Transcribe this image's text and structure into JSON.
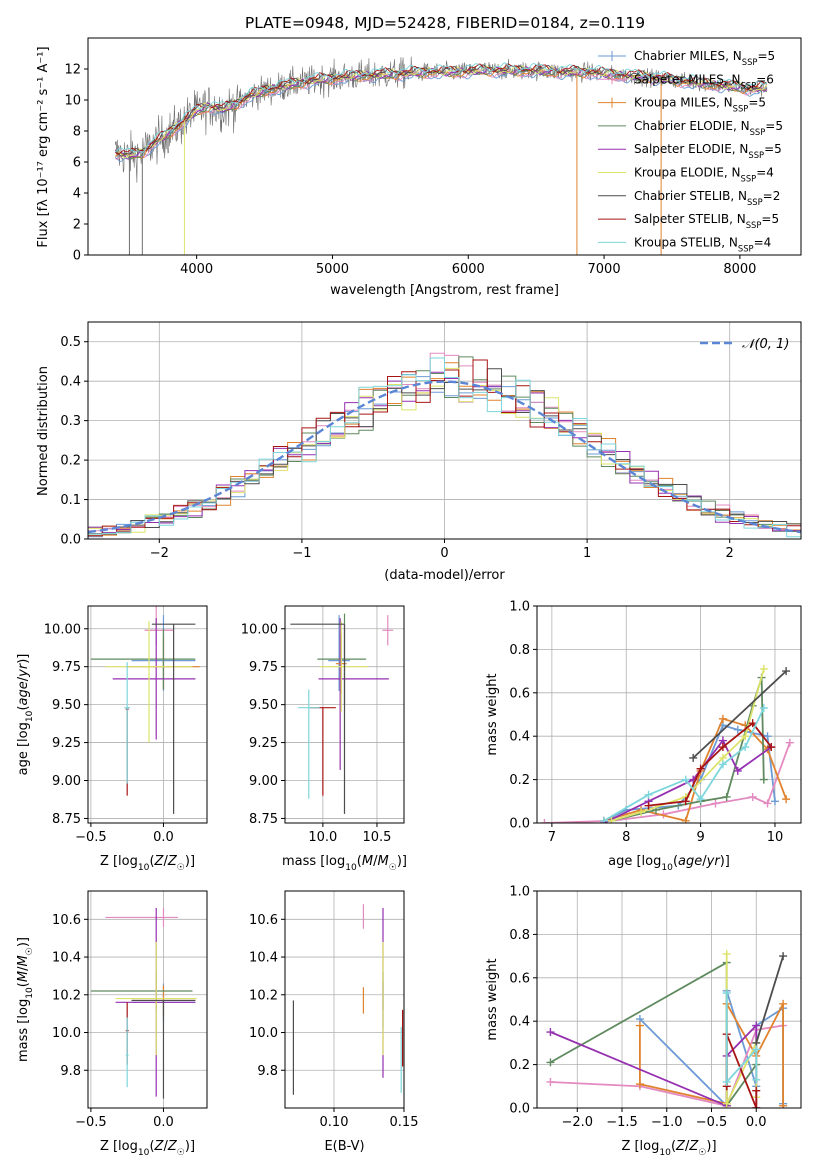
{
  "page_title": "PLATE=0948, MJD=52428, FIBERID=0184, z=0.119",
  "colors": {
    "Chabrier MILES": "#6c9bd5",
    "Salpeter MILES": "#e38ac0",
    "Kroupa MILES": "#e0832e",
    "Chabrier ELODIE": "#5f8a5f",
    "Salpeter ELODIE": "#9530b0",
    "Kroupa ELODIE": "#dde36a",
    "Chabrier STELIB": "#4d4d4d",
    "Salpeter STELIB": "#a81414",
    "Kroupa STELIB": "#7dd6dc",
    "normal": "#5b86d6"
  },
  "chart_data": [
    {
      "id": "spectrum",
      "type": "line",
      "title": "PLATE=0948, MJD=52428, FIBERID=0184, z=0.119",
      "xlabel": "wavelength [Angstrom, rest frame]",
      "ylabel": "Flux [fλ 10⁻¹⁷ erg cm⁻² s⁻¹ A⁻¹]",
      "xlim": [
        3200,
        8450
      ],
      "ylim": [
        0,
        14
      ],
      "xticks": [
        4000,
        5000,
        6000,
        7000,
        8000
      ],
      "yticks": [
        0,
        2,
        4,
        6,
        8,
        10,
        12
      ],
      "grid": false,
      "legend_position": "right",
      "legend": [
        "Chabrier MILES, N_SSP=5",
        "Salpeter MILES, N_SSP=6",
        "Kroupa MILES, N_SSP=5",
        "Chabrier ELODIE, N_SSP=5",
        "Salpeter ELODIE, N_SSP=5",
        "Kroupa ELODIE, N_SSP=4",
        "Chabrier STELIB, N_SSP=2",
        "Salpeter STELIB, N_SSP=5",
        "Kroupa STELIB, N_SSP=4"
      ],
      "data_anchors": {
        "x": [
          3400,
          3500,
          3600,
          3700,
          3800,
          3900,
          4000,
          4100,
          4200,
          4300,
          4400,
          4500,
          4700,
          4900,
          5100,
          5300,
          5500,
          5700,
          5900,
          6100,
          6300,
          6500,
          6700,
          6900,
          7100,
          7300,
          7500,
          7700,
          7900,
          8000,
          8100,
          8200
        ],
        "y": [
          6.6,
          6.4,
          6.6,
          7.3,
          7.9,
          8.6,
          9.3,
          9.6,
          9.4,
          9.8,
          10.3,
          10.6,
          11.0,
          11.3,
          11.5,
          11.6,
          11.7,
          11.8,
          11.8,
          11.9,
          11.9,
          11.9,
          11.8,
          11.8,
          11.6,
          11.5,
          11.3,
          11.1,
          10.9,
          10.8,
          10.7,
          10.8
        ]
      },
      "spikes": [
        {
          "x": 3505,
          "y": 0
        },
        {
          "x": 3600,
          "y": 0
        },
        {
          "x": 3910,
          "y": 0
        },
        {
          "x": 6800,
          "y": 0
        },
        {
          "x": 7420,
          "y": 0
        }
      ]
    },
    {
      "id": "residuals",
      "type": "step",
      "xlabel": "(data-model)/error",
      "ylabel": "Normed distribution",
      "xlim": [
        -2.5,
        2.5
      ],
      "ylim": [
        0,
        0.55
      ],
      "xticks": [
        -2,
        -1,
        0,
        1,
        2
      ],
      "yticks": [
        0.0,
        0.1,
        0.2,
        0.3,
        0.4,
        0.5
      ],
      "grid": true,
      "legend_position": "top-right",
      "legend": [
        "𝒩(0, 1)"
      ],
      "bin_width": 0.1,
      "bin_start": -2.5,
      "model_curve": "normal(0,1)"
    },
    {
      "id": "age-vs-Z",
      "type": "errorbar",
      "xlabel": "Z [log₁₀(Z/Z☉)]",
      "ylabel": "age  [log₁₀(age/yr)]",
      "xlim": [
        -0.52,
        0.3
      ],
      "ylim": [
        8.72,
        10.15
      ],
      "xticks": [
        -0.5,
        0.0
      ],
      "yticks": [
        8.75,
        9.0,
        9.25,
        9.5,
        9.75,
        10.0
      ],
      "grid": true,
      "points": [
        {
          "model": "Chabrier MILES",
          "x": 0.0,
          "y": 9.79,
          "xerr": [
            0.22,
            0.22
          ],
          "yerr": [
            0.2,
            0.3
          ]
        },
        {
          "model": "Salpeter MILES",
          "x": -0.05,
          "y": 9.99,
          "xerr": [
            0.08,
            0.12
          ],
          "yerr": [
            0.1,
            0.2
          ]
        },
        {
          "model": "Kroupa MILES",
          "x": 0.0,
          "y": 9.75,
          "xerr": [
            0.25,
            0.25
          ],
          "yerr": [
            0.15,
            0.2
          ]
        },
        {
          "model": "Chabrier ELODIE",
          "x": 0.0,
          "y": 9.8,
          "xerr": [
            0.5,
            0.22
          ],
          "yerr": [
            0.2,
            0.2
          ]
        },
        {
          "model": "Salpeter ELODIE",
          "x": -0.05,
          "y": 9.67,
          "xerr": [
            0.3,
            0.27
          ],
          "yerr": [
            0.4,
            0.4
          ]
        },
        {
          "model": "Kroupa ELODIE",
          "x": -0.1,
          "y": 9.75,
          "xerr": [
            0.3,
            0.3
          ],
          "yerr": [
            0.5,
            0.3
          ]
        },
        {
          "model": "Chabrier STELIB",
          "x": 0.07,
          "y": 10.03,
          "xerr": [
            0.15,
            0.15
          ],
          "yerr": [
            1.25,
            0.0
          ]
        },
        {
          "model": "Salpeter STELIB",
          "x": -0.25,
          "y": 9.47,
          "xerr": [
            0.01,
            0.01
          ],
          "yerr": [
            0.57,
            0.0
          ]
        },
        {
          "model": "Kroupa STELIB",
          "x": -0.25,
          "y": 9.48,
          "xerr": [
            0.02,
            0.02
          ],
          "yerr": [
            0.5,
            0.3
          ]
        }
      ]
    },
    {
      "id": "age-vs-mass",
      "type": "errorbar",
      "xlabel": "mass [log₁₀(M/M☉)]",
      "xlim": [
        9.65,
        10.75
      ],
      "ylim": [
        8.72,
        10.15
      ],
      "xticks": [
        10.0,
        10.5
      ],
      "yticks": [
        8.75,
        9.0,
        9.25,
        9.5,
        9.75,
        10.0
      ],
      "grid": true,
      "points": [
        {
          "model": "Chabrier MILES",
          "x": 10.15,
          "y": 9.79,
          "xerr": [
            0.1,
            0.1
          ],
          "yerr": [
            0.2,
            0.3
          ]
        },
        {
          "model": "Salpeter MILES",
          "x": 10.6,
          "y": 9.99,
          "xerr": [
            0.05,
            0.05
          ],
          "yerr": [
            0.1,
            0.1
          ]
        },
        {
          "model": "Kroupa MILES",
          "x": 10.17,
          "y": 9.77,
          "xerr": [
            0.05,
            0.05
          ],
          "yerr": [
            0.2,
            0.2
          ]
        },
        {
          "model": "Chabrier ELODIE",
          "x": 10.2,
          "y": 9.8,
          "xerr": [
            0.25,
            0.2
          ],
          "yerr": [
            0.3,
            0.3
          ]
        },
        {
          "model": "Salpeter ELODIE",
          "x": 10.16,
          "y": 9.67,
          "xerr": [
            0.2,
            0.45
          ],
          "yerr": [
            0.6,
            0.4
          ]
        },
        {
          "model": "Kroupa ELODIE",
          "x": 10.17,
          "y": 9.75,
          "xerr": [
            0.2,
            0.25
          ],
          "yerr": [
            0.3,
            0.3
          ]
        },
        {
          "model": "Chabrier STELIB",
          "x": 10.2,
          "y": 10.03,
          "xerr": [
            0.5,
            0.0
          ],
          "yerr": [
            1.25,
            0.0
          ]
        },
        {
          "model": "Salpeter STELIB",
          "x": 10.0,
          "y": 9.48,
          "xerr": [
            0.12,
            0.12
          ],
          "yerr": [
            0.58,
            0.0
          ]
        },
        {
          "model": "Kroupa STELIB",
          "x": 9.87,
          "y": 9.48,
          "xerr": [
            0.1,
            0.1
          ],
          "yerr": [
            0.6,
            0.12
          ]
        }
      ]
    },
    {
      "id": "massweight-vs-age",
      "type": "line",
      "xlabel": "age  [log₁₀(age/yr)]",
      "ylabel": "mass weight",
      "xlim": [
        6.8,
        10.35
      ],
      "ylim": [
        0,
        1.0
      ],
      "xticks": [
        7,
        8,
        9,
        10
      ],
      "yticks": [
        0.0,
        0.2,
        0.4,
        0.6,
        0.8,
        1.0
      ],
      "grid": true,
      "series": [
        {
          "model": "Chabrier MILES",
          "x": [
            7.7,
            8.0,
            8.7,
            9.0,
            9.3,
            9.5,
            9.9,
            10.0
          ],
          "y": [
            0.01,
            0.06,
            0.08,
            0.2,
            0.45,
            0.43,
            0.4,
            0.1
          ]
        },
        {
          "model": "Salpeter MILES",
          "x": [
            6.9,
            7.8,
            8.5,
            9.2,
            9.7,
            9.9,
            10.2
          ],
          "y": [
            0.0,
            0.01,
            0.04,
            0.09,
            0.12,
            0.09,
            0.37
          ]
        },
        {
          "model": "Kroupa MILES",
          "x": [
            7.7,
            8.2,
            8.8,
            9.0,
            9.3,
            9.6,
            9.9,
            10.15
          ],
          "y": [
            0.01,
            0.06,
            0.01,
            0.24,
            0.48,
            0.45,
            0.34,
            0.11
          ]
        },
        {
          "model": "Chabrier ELODIE",
          "x": [
            7.8,
            8.4,
            9.0,
            9.35,
            9.7,
            9.82,
            9.85
          ],
          "y": [
            0.01,
            0.06,
            0.1,
            0.12,
            0.54,
            0.67,
            0.2
          ]
        },
        {
          "model": "Salpeter ELODIE",
          "x": [
            7.7,
            8.3,
            8.9,
            9.3,
            9.5,
            9.95
          ],
          "y": [
            0.0,
            0.1,
            0.2,
            0.38,
            0.24,
            0.35
          ]
        },
        {
          "model": "Kroupa ELODIE",
          "x": [
            7.8,
            8.2,
            8.8,
            9.3,
            9.6,
            9.85
          ],
          "y": [
            0.01,
            0.05,
            0.12,
            0.3,
            0.4,
            0.71
          ]
        },
        {
          "model": "Chabrier STELIB",
          "x": [
            8.9,
            10.15
          ],
          "y": [
            0.3,
            0.7
          ]
        },
        {
          "model": "Salpeter STELIB",
          "x": [
            8.3,
            8.8,
            9.0,
            9.3,
            9.7,
            9.95
          ],
          "y": [
            0.08,
            0.1,
            0.25,
            0.35,
            0.46,
            0.35
          ]
        },
        {
          "model": "Kroupa STELIB",
          "x": [
            7.7,
            8.3,
            8.8,
            9.0,
            9.3,
            9.6,
            9.85
          ],
          "y": [
            0.01,
            0.13,
            0.2,
            0.11,
            0.27,
            0.35,
            0.53
          ]
        }
      ]
    },
    {
      "id": "mass-vs-Z",
      "type": "errorbar",
      "xlabel": "Z [log₁₀(Z/Z☉)]",
      "ylabel": "mass [log₁₀(M/M☉)]",
      "xlim": [
        -0.52,
        0.3
      ],
      "ylim": [
        9.6,
        10.75
      ],
      "xticks": [
        -0.5,
        0.0
      ],
      "yticks": [
        9.8,
        10.0,
        10.2,
        10.4,
        10.6
      ],
      "grid": true,
      "points": [
        {
          "model": "Chabrier MILES",
          "x": 0.0,
          "y": 10.16,
          "xerr": [
            0.22,
            0.22
          ],
          "yerr": [
            0.1,
            0.1
          ]
        },
        {
          "model": "Salpeter MILES",
          "x": 0.0,
          "y": 10.61,
          "xerr": [
            0.4,
            0.1
          ],
          "yerr": [
            0.05,
            0.05
          ]
        },
        {
          "model": "Kroupa MILES",
          "x": 0.0,
          "y": 10.17,
          "xerr": [
            0.22,
            0.22
          ],
          "yerr": [
            0.08,
            0.08
          ]
        },
        {
          "model": "Chabrier ELODIE",
          "x": -0.05,
          "y": 10.22,
          "xerr": [
            0.45,
            0.25
          ],
          "yerr": [
            0.1,
            0.1
          ]
        },
        {
          "model": "Salpeter ELODIE",
          "x": -0.05,
          "y": 10.16,
          "xerr": [
            0.28,
            0.27
          ],
          "yerr": [
            0.5,
            0.5
          ]
        },
        {
          "model": "Kroupa ELODIE",
          "x": -0.05,
          "y": 10.18,
          "xerr": [
            0.28,
            0.28
          ],
          "yerr": [
            0.3,
            0.3
          ]
        },
        {
          "model": "Chabrier STELIB",
          "x": 0.0,
          "y": 10.17,
          "xerr": [
            0.22,
            0.22
          ],
          "yerr": [
            0.52,
            0.0
          ]
        },
        {
          "model": "Salpeter STELIB",
          "x": -0.25,
          "y": 10.01,
          "xerr": [
            0.01,
            0.01
          ],
          "yerr": [
            0.18,
            0.15
          ]
        },
        {
          "model": "Kroupa STELIB",
          "x": -0.25,
          "y": 9.88,
          "xerr": [
            0.01,
            0.01
          ],
          "yerr": [
            0.17,
            0.2
          ]
        }
      ]
    },
    {
      "id": "mass-vs-EBV",
      "type": "errorbar",
      "xlabel": "E(B-V)",
      "xlim": [
        0.065,
        0.15
      ],
      "ylim": [
        9.6,
        10.75
      ],
      "xticks": [
        0.1,
        0.15
      ],
      "yticks": [
        9.8,
        10.0,
        10.2,
        10.4,
        10.6
      ],
      "grid": true,
      "points": [
        {
          "model": "Chabrier MILES",
          "x": 0.135,
          "y": 10.17,
          "xerr": [
            0,
            0
          ],
          "yerr": [
            0.15,
            0.1
          ]
        },
        {
          "model": "Salpeter MILES",
          "x": 0.121,
          "y": 10.6,
          "xerr": [
            0,
            0
          ],
          "yerr": [
            0.05,
            0.08
          ]
        },
        {
          "model": "Kroupa MILES",
          "x": 0.121,
          "y": 10.17,
          "xerr": [
            0,
            0
          ],
          "yerr": [
            0.07,
            0.07
          ]
        },
        {
          "model": "Chabrier ELODIE",
          "x": 0.135,
          "y": 10.22,
          "xerr": [
            0,
            0
          ],
          "yerr": [
            0.1,
            0.1
          ]
        },
        {
          "model": "Salpeter ELODIE",
          "x": 0.135,
          "y": 10.16,
          "xerr": [
            0,
            0
          ],
          "yerr": [
            0.4,
            0.5
          ]
        },
        {
          "model": "Kroupa ELODIE",
          "x": 0.135,
          "y": 10.18,
          "xerr": [
            0,
            0
          ],
          "yerr": [
            0.3,
            0.3
          ]
        },
        {
          "model": "Chabrier STELIB",
          "x": 0.071,
          "y": 10.17,
          "xerr": [
            0,
            0
          ],
          "yerr": [
            0.5,
            0.0
          ]
        },
        {
          "model": "Salpeter STELIB",
          "x": 0.149,
          "y": 10.02,
          "xerr": [
            0,
            0
          ],
          "yerr": [
            0.2,
            0.1
          ]
        },
        {
          "model": "Kroupa STELIB",
          "x": 0.148,
          "y": 9.88,
          "xerr": [
            0,
            0
          ],
          "yerr": [
            0.2,
            0.15
          ]
        }
      ]
    },
    {
      "id": "massweight-vs-Z",
      "type": "line",
      "xlabel": "Z [log₁₀(Z/Z☉)]",
      "ylabel": "mass weight",
      "xlim": [
        -2.45,
        0.5
      ],
      "ylim": [
        0,
        1.0
      ],
      "xticks": [
        -2.0,
        -1.5,
        -1.0,
        -0.5,
        0.0
      ],
      "yticks": [
        0.0,
        0.2,
        0.4,
        0.6,
        0.8,
        1.0
      ],
      "grid": true,
      "series": [
        {
          "model": "Chabrier MILES",
          "x": [
            -1.3,
            -0.33,
            -0.33,
            0.0,
            0.0,
            0.3,
            0.3
          ],
          "y": [
            0.41,
            0.01,
            0.54,
            0.1,
            0.38,
            0.46,
            0.02
          ]
        },
        {
          "model": "Salpeter MILES",
          "x": [
            -2.3,
            -1.3,
            -0.33,
            0.0,
            0.3
          ],
          "y": [
            0.12,
            0.1,
            0.01,
            0.36,
            0.38
          ]
        },
        {
          "model": "Kroupa MILES",
          "x": [
            -1.3,
            -1.3,
            -0.33,
            -0.33,
            0.0,
            0.3,
            0.3
          ],
          "y": [
            0.38,
            0.11,
            0.02,
            0.48,
            0.24,
            0.48,
            0.01
          ]
        },
        {
          "model": "Chabrier ELODIE",
          "x": [
            -2.3,
            -0.33,
            -0.33,
            0.0
          ],
          "y": [
            0.21,
            0.67,
            0.01,
            0.2
          ]
        },
        {
          "model": "Salpeter ELODIE",
          "x": [
            -2.3,
            -0.33,
            -0.33,
            0.0,
            0.0
          ],
          "y": [
            0.35,
            0.01,
            0.24,
            0.38,
            0.0
          ]
        },
        {
          "model": "Kroupa ELODIE",
          "x": [
            -0.33,
            -0.33,
            0.0,
            0.0
          ],
          "y": [
            0.71,
            0.02,
            0.3,
            0.05
          ]
        },
        {
          "model": "Chabrier STELIB",
          "x": [
            0.0,
            0.3
          ],
          "y": [
            0.3,
            0.7
          ]
        },
        {
          "model": "Salpeter STELIB",
          "x": [
            -0.33,
            -0.33,
            0.0,
            0.0
          ],
          "y": [
            0.1,
            0.34,
            0.0,
            0.08
          ]
        },
        {
          "model": "Kroupa STELIB",
          "x": [
            -0.33,
            -0.33,
            0.0,
            0.0
          ],
          "y": [
            0.53,
            0.12,
            0.27,
            0.13
          ]
        }
      ]
    }
  ]
}
